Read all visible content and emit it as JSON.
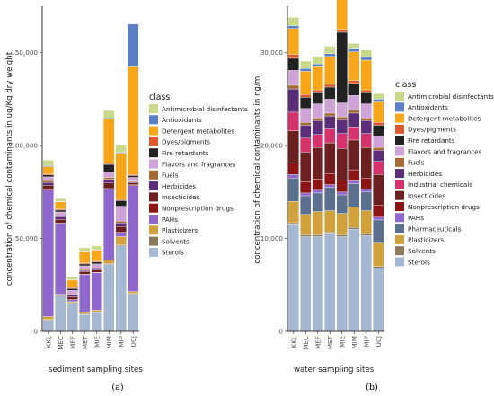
{
  "colors": {
    "Antimicrobial disinfectants": "#c9d98c",
    "Antioxidants": "#5b7fc4",
    "Detergent metabolites": "#f7a61a",
    "Dyes/pigments": "#e0582e",
    "Fire retardants": "#222222",
    "Flavors and fragrances": "#cfa3d8",
    "Fuels": "#a56a35",
    "Herbicides": "#5c2e7a",
    "Industrial chemicals": "#d6336c",
    "Insecticides": "#6b1f1f",
    "Nonprescription drugs": "#8c1414",
    "PAHs": "#9067cf",
    "Pharmaceuticals": "#5b6f8f",
    "Plasticizers": "#d1a23c",
    "Solvents": "#8a7a5c",
    "Sterols": "#a6b8d1"
  },
  "chart_data": [
    {
      "type": "bar",
      "stacked": true,
      "panel_label": "(a)",
      "xlabel": "sediment sampling sites",
      "ylabel": "concentration of chemical contaminants in ug/Kg dry weight",
      "ylim": [
        0,
        175000
      ],
      "yticks": [
        0,
        50000,
        100000,
        150000
      ],
      "ytick_labels": [
        "0",
        "50,000",
        "100,000",
        "150,000"
      ],
      "grid": false,
      "legend_title": "class",
      "legend_position": "right",
      "categories": [
        "KKL",
        "MEC",
        "MEF",
        "MET",
        "MIE",
        "MIM",
        "MIP",
        "UCJ"
      ],
      "series": [
        {
          "name": "Sterols",
          "values": [
            6000,
            19000,
            15000,
            9000,
            10000,
            36000,
            46000,
            20000
          ]
        },
        {
          "name": "Solvents",
          "values": [
            500,
            500,
            500,
            500,
            500,
            500,
            500,
            500
          ]
        },
        {
          "name": "Plasticizers",
          "values": [
            1500,
            500,
            500,
            1000,
            1000,
            2000,
            4500,
            1000
          ]
        },
        {
          "name": "PAHs",
          "values": [
            68000,
            38000,
            1000,
            20000,
            20000,
            38000,
            2000,
            57000
          ]
        },
        {
          "name": "Nonprescription drugs",
          "values": [
            700,
            300,
            100,
            300,
            300,
            400,
            400,
            400
          ]
        },
        {
          "name": "Insecticides",
          "values": [
            2000,
            2000,
            1500,
            1500,
            1500,
            3000,
            3000,
            1000
          ]
        },
        {
          "name": "Herbicides",
          "values": [
            1500,
            1500,
            1000,
            500,
            500,
            2000,
            2000,
            500
          ]
        },
        {
          "name": "Fuels",
          "values": [
            1000,
            500,
            500,
            500,
            500,
            1000,
            1000,
            500
          ]
        },
        {
          "name": "Flavors and fragrances",
          "values": [
            2000,
            2000,
            2000,
            2000,
            2000,
            3000,
            8000,
            2000
          ]
        },
        {
          "name": "Fire retardants",
          "values": [
            1000,
            1000,
            1000,
            1000,
            1000,
            4000,
            3000,
            1000
          ]
        },
        {
          "name": "Dyes/pigments",
          "values": [
            500,
            500,
            500,
            500,
            500,
            500,
            500,
            500
          ]
        },
        {
          "name": "Detergent metabolites",
          "values": [
            4000,
            4000,
            4000,
            6000,
            6000,
            24000,
            25000,
            58000
          ]
        },
        {
          "name": "Antioxidants",
          "values": [
            500,
            200,
            200,
            200,
            200,
            500,
            500,
            23000
          ]
        },
        {
          "name": "Antimicrobial disinfectants",
          "values": [
            3000,
            1500,
            1500,
            2000,
            2000,
            4000,
            4000,
            0
          ]
        }
      ]
    },
    {
      "type": "bar",
      "stacked": true,
      "panel_label": "(b)",
      "xlabel": "water sampling sites",
      "ylabel": "concentration of chemical contaminants in ng/ml",
      "ylim": [
        0,
        35000
      ],
      "yticks": [
        0,
        10000,
        20000,
        30000
      ],
      "ytick_labels": [
        "0",
        "10,000",
        "20,000",
        "30,000"
      ],
      "grid": false,
      "legend_title": "class",
      "legend_position": "right",
      "categories": [
        "KKL",
        "MEC",
        "MEF",
        "MET",
        "MIE",
        "MIM",
        "MIP",
        "UCJ"
      ],
      "series": [
        {
          "name": "Sterols",
          "values": [
            11500,
            10200,
            10200,
            10500,
            10200,
            11000,
            10300,
            6800
          ]
        },
        {
          "name": "Solvents",
          "values": [
            200,
            200,
            200,
            200,
            200,
            200,
            200,
            200
          ]
        },
        {
          "name": "Plasticizers",
          "values": [
            2300,
            2200,
            2500,
            2300,
            2300,
            2200,
            2500,
            2500
          ]
        },
        {
          "name": "Pharmaceuticals",
          "values": [
            2500,
            2000,
            2000,
            2500,
            2000,
            2500,
            2000,
            2500
          ]
        },
        {
          "name": "PAHs",
          "values": [
            400,
            300,
            300,
            300,
            300,
            300,
            300,
            300
          ]
        },
        {
          "name": "Nonprescription drugs",
          "values": [
            1200,
            1200,
            1200,
            1200,
            1300,
            1200,
            1200,
            1300
          ]
        },
        {
          "name": "Insecticides",
          "values": [
            3500,
            3200,
            3400,
            3300,
            3400,
            3200,
            3300,
            3300
          ]
        },
        {
          "name": "Industrial chemicals",
          "values": [
            2000,
            1500,
            1400,
            1500,
            1600,
            1400,
            1500,
            1400
          ]
        },
        {
          "name": "Herbicides",
          "values": [
            2500,
            1400,
            1500,
            1400,
            1500,
            1500,
            1400,
            1200
          ]
        },
        {
          "name": "Fuels",
          "values": [
            400,
            300,
            300,
            300,
            300,
            300,
            300,
            300
          ]
        },
        {
          "name": "Flavors and fragrances",
          "values": [
            1600,
            1500,
            1500,
            1500,
            1500,
            1600,
            1500,
            1200
          ]
        },
        {
          "name": "Fire retardants",
          "values": [
            1300,
            1200,
            1200,
            1300,
            7600,
            1300,
            1200,
            1200
          ]
        },
        {
          "name": "Dyes/pigments",
          "values": [
            400,
            300,
            300,
            300,
            300,
            300,
            300,
            300
          ]
        },
        {
          "name": "Detergent metabolites",
          "values": [
            2800,
            2500,
            2500,
            3000,
            3200,
            3100,
            3200,
            2200
          ]
        },
        {
          "name": "Antioxidants",
          "values": [
            300,
            300,
            300,
            300,
            300,
            300,
            300,
            300
          ]
        },
        {
          "name": "Antimicrobial disinfectants",
          "values": [
            900,
            800,
            800,
            800,
            800,
            600,
            800,
            600
          ]
        }
      ]
    }
  ],
  "legends": [
    [
      "Antimicrobial disinfectants",
      "Antioxidants",
      "Detergent metabolites",
      "Dyes/pigments",
      "Fire retardants",
      "Flavors and fragrances",
      "Fuels",
      "Herbicides",
      "Insecticides",
      "Nonprescription drugs",
      "PAHs",
      "Plasticizers",
      "Solvents",
      "Sterols"
    ],
    [
      "Antimicrobial disinfectants",
      "Antioxidants",
      "Detergent metabolites",
      "Dyes/pigments",
      "Fire retardants",
      "Flavors and fragrances",
      "Fuels",
      "Herbicides",
      "Industrial chemicals",
      "Insecticides",
      "Nonprescription drugs",
      "PAHs",
      "Pharmaceuticals",
      "Plasticizers",
      "Solvents",
      "Sterols"
    ]
  ]
}
